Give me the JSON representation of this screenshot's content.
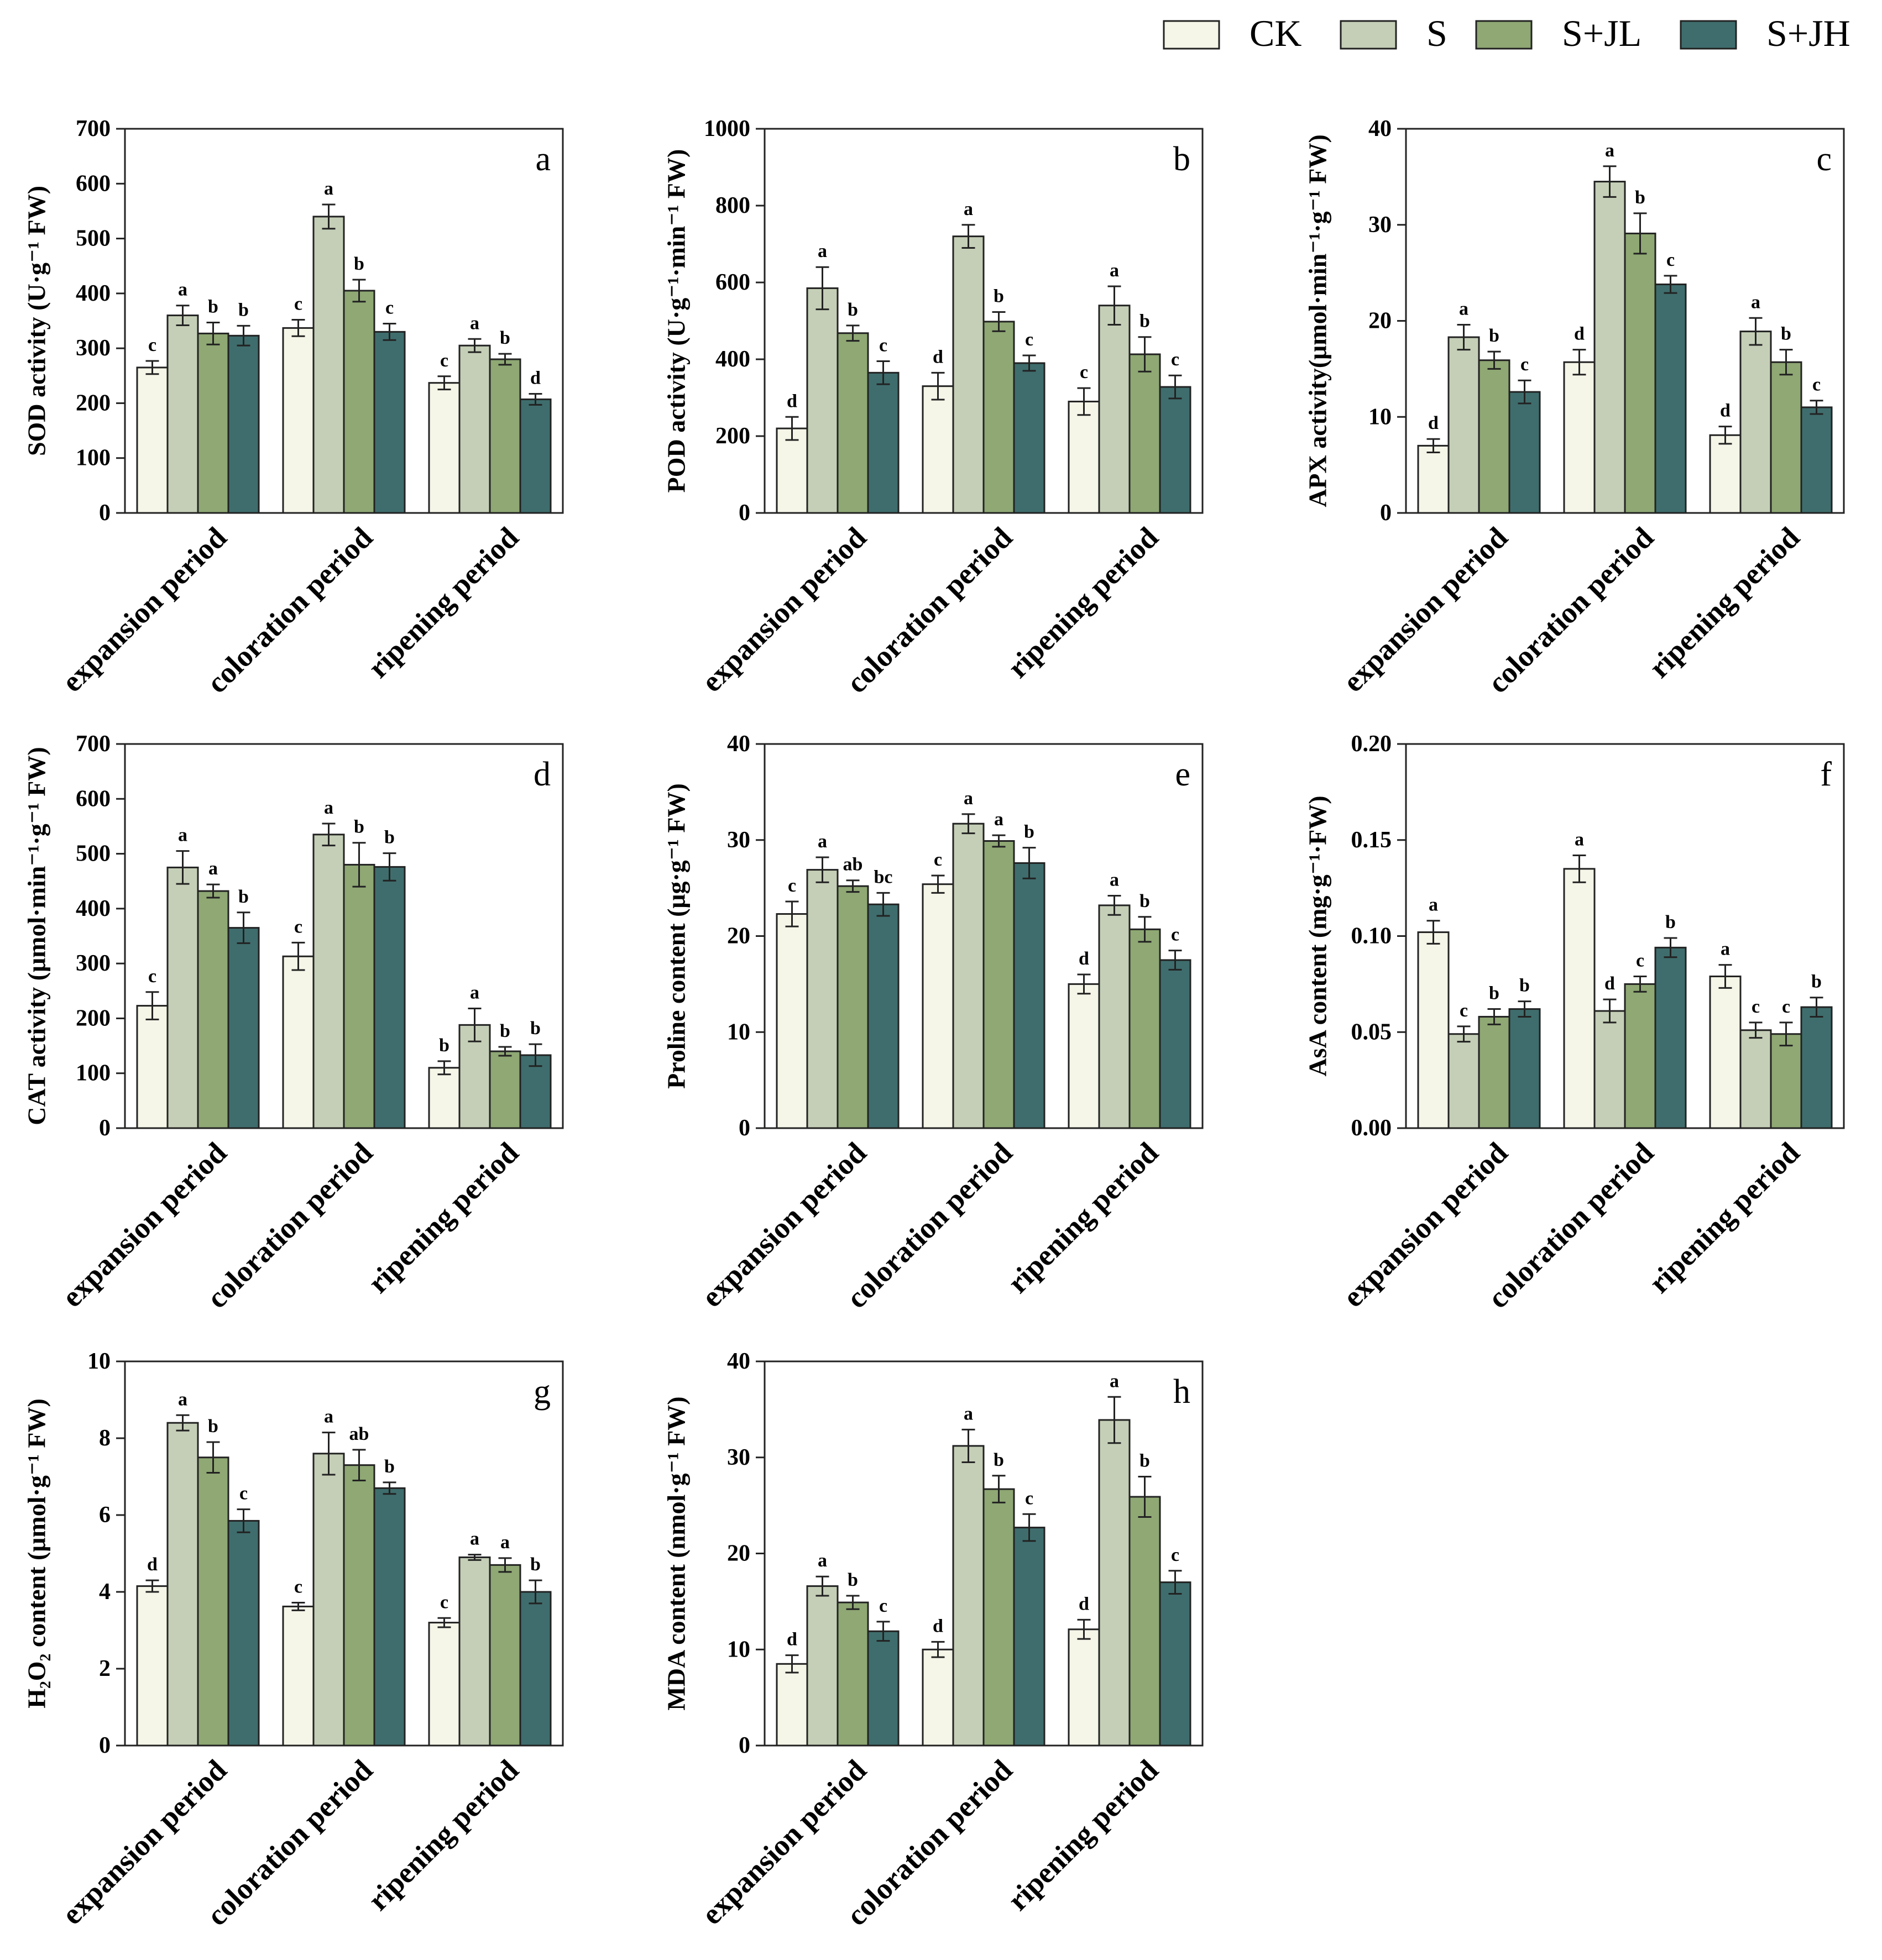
{
  "legend": [
    {
      "name": "CK",
      "color": "#f5f5e8"
    },
    {
      "name": "S",
      "color": "#c5cfb7"
    },
    {
      "name": "S+JL",
      "color": "#8fa874"
    },
    {
      "name": "S+JH",
      "color": "#3f6d6d"
    }
  ],
  "chart_data": [
    {
      "panel": "a",
      "type": "bar",
      "ylabel": "SOD activity (U·g⁻¹ FW)",
      "ylim": [
        0,
        700
      ],
      "yticks": [
        0,
        100,
        200,
        300,
        400,
        500,
        600,
        700
      ],
      "categories": [
        "expansion period",
        "coloration period",
        "ripening period"
      ],
      "series": [
        {
          "name": "CK",
          "values": [
            265,
            337,
            237
          ],
          "errors": [
            12,
            15,
            12
          ],
          "letters": [
            "c",
            "c",
            "c"
          ]
        },
        {
          "name": "S",
          "values": [
            360,
            540,
            305
          ],
          "errors": [
            18,
            22,
            12
          ],
          "letters": [
            "a",
            "a",
            "a"
          ]
        },
        {
          "name": "S+JL",
          "values": [
            327,
            405,
            280
          ],
          "errors": [
            20,
            20,
            10
          ],
          "letters": [
            "b",
            "b",
            "b"
          ]
        },
        {
          "name": "S+JH",
          "values": [
            323,
            330,
            207
          ],
          "errors": [
            18,
            15,
            10
          ],
          "letters": [
            "b",
            "c",
            "d"
          ]
        }
      ]
    },
    {
      "panel": "b",
      "type": "bar",
      "ylabel": "POD activity (U·g⁻¹·min⁻¹ FW)",
      "ylim": [
        0,
        1000
      ],
      "yticks": [
        0,
        200,
        400,
        600,
        800,
        1000
      ],
      "categories": [
        "expansion period",
        "coloration period",
        "ripening period"
      ],
      "series": [
        {
          "name": "CK",
          "values": [
            220,
            330,
            290
          ],
          "errors": [
            30,
            35,
            35
          ],
          "letters": [
            "d",
            "d",
            "c"
          ]
        },
        {
          "name": "S",
          "values": [
            585,
            720,
            540
          ],
          "errors": [
            55,
            30,
            50
          ],
          "letters": [
            "a",
            "a",
            "a"
          ]
        },
        {
          "name": "S+JL",
          "values": [
            468,
            498,
            413
          ],
          "errors": [
            20,
            25,
            45
          ],
          "letters": [
            "b",
            "b",
            "b"
          ]
        },
        {
          "name": "S+JH",
          "values": [
            365,
            390,
            328
          ],
          "errors": [
            30,
            20,
            30
          ],
          "letters": [
            "c",
            "c",
            "c"
          ]
        }
      ]
    },
    {
      "panel": "c",
      "type": "bar",
      "ylabel": "APX activity(μmol·min⁻¹·g⁻¹ FW)",
      "ylim": [
        0,
        40
      ],
      "yticks": [
        0,
        10,
        20,
        30,
        40
      ],
      "categories": [
        "expansion period",
        "coloration period",
        "ripening period"
      ],
      "series": [
        {
          "name": "CK",
          "values": [
            7,
            15.7,
            8.1
          ],
          "errors": [
            0.7,
            1.3,
            0.9
          ],
          "letters": [
            "d",
            "d",
            "d"
          ]
        },
        {
          "name": "S",
          "values": [
            18.3,
            34.5,
            18.9
          ],
          "errors": [
            1.3,
            1.6,
            1.4
          ],
          "letters": [
            "a",
            "a",
            "a"
          ]
        },
        {
          "name": "S+JL",
          "values": [
            15.9,
            29.1,
            15.7
          ],
          "errors": [
            0.9,
            2.1,
            1.3
          ],
          "letters": [
            "b",
            "b",
            "b"
          ]
        },
        {
          "name": "S+JH",
          "values": [
            12.6,
            23.8,
            11
          ],
          "errors": [
            1.2,
            0.9,
            0.7
          ],
          "letters": [
            "c",
            "c",
            "c"
          ]
        }
      ]
    },
    {
      "panel": "d",
      "type": "bar",
      "ylabel": "CAT activity (μmol·min⁻¹·g⁻¹ FW)",
      "ylim": [
        0,
        700
      ],
      "yticks": [
        0,
        100,
        200,
        300,
        400,
        500,
        600,
        700
      ],
      "categories": [
        "expansion period",
        "coloration period",
        "ripening period"
      ],
      "series": [
        {
          "name": "CK",
          "values": [
            223,
            313,
            110
          ],
          "errors": [
            25,
            25,
            12
          ],
          "letters": [
            "c",
            "c",
            "b"
          ]
        },
        {
          "name": "S",
          "values": [
            475,
            535,
            188
          ],
          "errors": [
            30,
            20,
            30
          ],
          "letters": [
            "a",
            "a",
            "a"
          ]
        },
        {
          "name": "S+JL",
          "values": [
            432,
            480,
            140
          ],
          "errors": [
            12,
            40,
            8
          ],
          "letters": [
            "a",
            "b",
            "b"
          ]
        },
        {
          "name": "S+JH",
          "values": [
            365,
            476,
            133
          ],
          "errors": [
            28,
            25,
            20
          ],
          "letters": [
            "b",
            "b",
            "b"
          ]
        }
      ]
    },
    {
      "panel": "e",
      "type": "bar",
      "ylabel": "Proline content (μg·g⁻¹ FW)",
      "ylim": [
        0,
        40
      ],
      "yticks": [
        0,
        10,
        20,
        30,
        40
      ],
      "categories": [
        "expansion period",
        "coloration period",
        "ripening period"
      ],
      "series": [
        {
          "name": "CK",
          "values": [
            22.3,
            25.4,
            15
          ],
          "errors": [
            1.3,
            0.9,
            1
          ],
          "letters": [
            "c",
            "c",
            "d"
          ]
        },
        {
          "name": "S",
          "values": [
            26.9,
            31.7,
            23.2
          ],
          "errors": [
            1.3,
            1,
            1
          ],
          "letters": [
            "a",
            "a",
            "a"
          ]
        },
        {
          "name": "S+JL",
          "values": [
            25.2,
            29.9,
            20.7
          ],
          "errors": [
            0.6,
            0.6,
            1.3
          ],
          "letters": [
            "ab",
            "a",
            "b"
          ]
        },
        {
          "name": "S+JH",
          "values": [
            23.3,
            27.6,
            17.5
          ],
          "errors": [
            1.2,
            1.6,
            1
          ],
          "letters": [
            "bc",
            "b",
            "c"
          ]
        }
      ]
    },
    {
      "panel": "f",
      "type": "bar",
      "ylabel": "AsA content (mg·g⁻¹·FW)",
      "ylim": [
        0,
        0.2
      ],
      "yticks": [
        0,
        0.05,
        0.1,
        0.15,
        0.2
      ],
      "ytick_labels": [
        "0.00",
        "0.05",
        "0.10",
        "0.15",
        "0.20"
      ],
      "categories": [
        "expansion period",
        "coloration period",
        "ripening period"
      ],
      "series": [
        {
          "name": "CK",
          "values": [
            0.102,
            0.135,
            0.079
          ],
          "errors": [
            0.006,
            0.007,
            0.006
          ],
          "letters": [
            "a",
            "a",
            "a"
          ]
        },
        {
          "name": "S",
          "values": [
            0.049,
            0.061,
            0.051
          ],
          "errors": [
            0.004,
            0.006,
            0.004
          ],
          "letters": [
            "c",
            "d",
            "c"
          ]
        },
        {
          "name": "S+JL",
          "values": [
            0.058,
            0.075,
            0.049
          ],
          "errors": [
            0.004,
            0.004,
            0.006
          ],
          "letters": [
            "b",
            "c",
            "c"
          ]
        },
        {
          "name": "S+JH",
          "values": [
            0.062,
            0.094,
            0.063
          ],
          "errors": [
            0.004,
            0.005,
            0.005
          ],
          "letters": [
            "b",
            "b",
            "b"
          ]
        }
      ]
    },
    {
      "panel": "g",
      "type": "bar",
      "ylabel": "H₂O₂ content (μmol·g⁻¹ FW)",
      "ylim": [
        0,
        10
      ],
      "yticks": [
        0,
        2,
        4,
        6,
        8,
        10
      ],
      "categories": [
        "expansion period",
        "coloration period",
        "ripening period"
      ],
      "series": [
        {
          "name": "CK",
          "values": [
            4.15,
            3.62,
            3.2
          ],
          "errors": [
            0.15,
            0.1,
            0.12
          ],
          "letters": [
            "d",
            "c",
            "c"
          ]
        },
        {
          "name": "S",
          "values": [
            8.4,
            7.6,
            4.9
          ],
          "errors": [
            0.2,
            0.55,
            0.07
          ],
          "letters": [
            "a",
            "a",
            "a"
          ]
        },
        {
          "name": "S+JL",
          "values": [
            7.5,
            7.3,
            4.7
          ],
          "errors": [
            0.4,
            0.4,
            0.18
          ],
          "letters": [
            "b",
            "ab",
            "a"
          ]
        },
        {
          "name": "S+JH",
          "values": [
            5.85,
            6.7,
            4
          ],
          "errors": [
            0.3,
            0.15,
            0.3
          ],
          "letters": [
            "c",
            "b",
            "b"
          ]
        }
      ]
    },
    {
      "panel": "h",
      "type": "bar",
      "ylabel": "MDA content (nmol·g⁻¹ FW)",
      "ylim": [
        0,
        40
      ],
      "yticks": [
        0,
        10,
        20,
        30,
        40
      ],
      "categories": [
        "expansion period",
        "coloration period",
        "ripening period"
      ],
      "series": [
        {
          "name": "CK",
          "values": [
            8.5,
            10,
            12.1
          ],
          "errors": [
            0.9,
            0.8,
            1
          ],
          "letters": [
            "d",
            "d",
            "d"
          ]
        },
        {
          "name": "S",
          "values": [
            16.6,
            31.2,
            33.9
          ],
          "errors": [
            1,
            1.7,
            2.4
          ],
          "letters": [
            "a",
            "a",
            "a"
          ]
        },
        {
          "name": "S+JL",
          "values": [
            14.9,
            26.7,
            25.9
          ],
          "errors": [
            0.7,
            1.4,
            2.1
          ],
          "letters": [
            "b",
            "b",
            "b"
          ]
        },
        {
          "name": "S+JH",
          "values": [
            11.9,
            22.7,
            17
          ],
          "errors": [
            1,
            1.4,
            1.2
          ],
          "letters": [
            "c",
            "c",
            "c"
          ]
        }
      ]
    }
  ]
}
